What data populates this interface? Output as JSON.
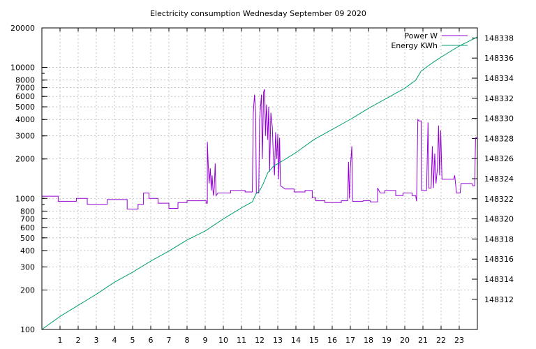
{
  "chart_data": {
    "type": "line",
    "title": "Electricity consumption Wednesday September 09 2020",
    "xlabel": "",
    "ylabel": "",
    "y2label": "",
    "xlim": [
      0,
      24
    ],
    "ylim": [
      100,
      20000
    ],
    "yscale": "log",
    "y2lim": [
      148309,
      148339
    ],
    "grid": true,
    "legend_position": "top-right",
    "x_ticks": [
      1,
      2,
      3,
      4,
      5,
      6,
      7,
      8,
      9,
      10,
      11,
      12,
      13,
      14,
      15,
      16,
      17,
      18,
      19,
      20,
      21,
      22,
      23
    ],
    "y_ticks": [
      {
        "v": 100,
        "label": "100"
      },
      {
        "v": 200,
        "label": "200"
      },
      {
        "v": 300,
        "label": "300"
      },
      {
        "v": 400,
        "label": "400"
      },
      {
        "v": 500,
        "label": "500"
      },
      {
        "v": 600,
        "label": "600"
      },
      {
        "v": 700,
        "label": "700"
      },
      {
        "v": 800,
        "label": "800"
      },
      {
        "v": 1000,
        "label": "1000"
      },
      {
        "v": 2000,
        "label": "2000"
      },
      {
        "v": 3000,
        "label": "3000"
      },
      {
        "v": 4000,
        "label": "4000"
      },
      {
        "v": 5000,
        "label": "5000"
      },
      {
        "v": 6000,
        "label": "6000"
      },
      {
        "v": 7000,
        "label": "7000"
      },
      {
        "v": 8000,
        "label": "8000"
      },
      {
        "v": 10000,
        "label": "10000"
      },
      {
        "v": 20000,
        "label": "20000"
      }
    ],
    "y2_ticks": [
      148312,
      148314,
      148316,
      148318,
      148320,
      148322,
      148324,
      148326,
      148328,
      148330,
      148332,
      148334,
      148336,
      148338
    ],
    "series": [
      {
        "name": "Power W",
        "axis": "y",
        "color": "#9400d3",
        "points": [
          [
            0,
            1040
          ],
          [
            0.9,
            1040
          ],
          [
            0.9,
            950
          ],
          [
            1.9,
            950
          ],
          [
            1.9,
            1000
          ],
          [
            2.5,
            1000
          ],
          [
            2.5,
            900
          ],
          [
            3.6,
            900
          ],
          [
            3.6,
            980
          ],
          [
            4.7,
            980
          ],
          [
            4.7,
            830
          ],
          [
            5.3,
            830
          ],
          [
            5.3,
            900
          ],
          [
            5.6,
            900
          ],
          [
            5.6,
            1100
          ],
          [
            5.9,
            1100
          ],
          [
            5.9,
            1000
          ],
          [
            6.4,
            1000
          ],
          [
            6.4,
            920
          ],
          [
            7.0,
            920
          ],
          [
            7.0,
            840
          ],
          [
            7.5,
            840
          ],
          [
            7.5,
            930
          ],
          [
            8.0,
            930
          ],
          [
            8.0,
            960
          ],
          [
            9.05,
            960
          ],
          [
            9.05,
            920
          ],
          [
            9.12,
            920
          ],
          [
            9.12,
            2700
          ],
          [
            9.16,
            1900
          ],
          [
            9.22,
            1300
          ],
          [
            9.28,
            1700
          ],
          [
            9.34,
            1150
          ],
          [
            9.38,
            1500
          ],
          [
            9.45,
            1050
          ],
          [
            9.5,
            1200
          ],
          [
            9.55,
            1850
          ],
          [
            9.6,
            1050
          ],
          [
            9.7,
            1100
          ],
          [
            10.4,
            1100
          ],
          [
            10.4,
            1150
          ],
          [
            11.2,
            1150
          ],
          [
            11.2,
            1120
          ],
          [
            11.6,
            1120
          ],
          [
            11.65,
            4500
          ],
          [
            11.72,
            6200
          ],
          [
            11.78,
            4500
          ],
          [
            11.82,
            1100
          ],
          [
            11.95,
            1100
          ],
          [
            12.0,
            4000
          ],
          [
            12.1,
            6200
          ],
          [
            12.15,
            2000
          ],
          [
            12.22,
            6500
          ],
          [
            12.28,
            6800
          ],
          [
            12.32,
            3000
          ],
          [
            12.38,
            5200
          ],
          [
            12.45,
            2800
          ],
          [
            12.5,
            5000
          ],
          [
            12.55,
            1600
          ],
          [
            12.62,
            4500
          ],
          [
            12.7,
            3500
          ],
          [
            12.75,
            2200
          ],
          [
            12.82,
            1500
          ],
          [
            12.88,
            3200
          ],
          [
            12.95,
            2000
          ],
          [
            13.0,
            3100
          ],
          [
            13.05,
            1400
          ],
          [
            13.1,
            2900
          ],
          [
            13.15,
            1250
          ],
          [
            13.4,
            1180
          ],
          [
            13.9,
            1180
          ],
          [
            13.9,
            1120
          ],
          [
            14.5,
            1120
          ],
          [
            14.5,
            1150
          ],
          [
            14.9,
            1150
          ],
          [
            14.9,
            1010
          ],
          [
            15.1,
            1010
          ],
          [
            15.1,
            960
          ],
          [
            15.6,
            960
          ],
          [
            15.6,
            930
          ],
          [
            16.5,
            930
          ],
          [
            16.5,
            960
          ],
          [
            16.85,
            960
          ],
          [
            16.9,
            1900
          ],
          [
            16.95,
            1000
          ],
          [
            17.0,
            1700
          ],
          [
            17.08,
            2500
          ],
          [
            17.12,
            950
          ],
          [
            17.7,
            950
          ],
          [
            17.7,
            960
          ],
          [
            18.1,
            960
          ],
          [
            18.1,
            940
          ],
          [
            18.5,
            940
          ],
          [
            18.5,
            1200
          ],
          [
            18.65,
            1100
          ],
          [
            18.9,
            1100
          ],
          [
            18.9,
            1150
          ],
          [
            19.5,
            1150
          ],
          [
            19.5,
            1050
          ],
          [
            19.9,
            1050
          ],
          [
            19.9,
            1100
          ],
          [
            20.4,
            1100
          ],
          [
            20.4,
            1050
          ],
          [
            20.6,
            1050
          ],
          [
            20.65,
            950
          ],
          [
            20.72,
            4000
          ],
          [
            20.78,
            3900
          ],
          [
            20.9,
            3900
          ],
          [
            20.92,
            1150
          ],
          [
            21.2,
            1150
          ],
          [
            21.28,
            3800
          ],
          [
            21.32,
            1200
          ],
          [
            21.45,
            1200
          ],
          [
            21.52,
            2500
          ],
          [
            21.58,
            1200
          ],
          [
            21.65,
            2200
          ],
          [
            21.72,
            1300
          ],
          [
            21.8,
            1700
          ],
          [
            21.86,
            3600
          ],
          [
            21.92,
            1500
          ],
          [
            21.98,
            3300
          ],
          [
            22.05,
            1400
          ],
          [
            22.7,
            1400
          ],
          [
            22.75,
            1500
          ],
          [
            22.85,
            1100
          ],
          [
            23.05,
            1100
          ],
          [
            23.1,
            1300
          ],
          [
            23.7,
            1300
          ],
          [
            23.75,
            1250
          ],
          [
            23.85,
            1250
          ],
          [
            23.9,
            2900
          ],
          [
            24,
            2900
          ]
        ]
      },
      {
        "name": "Energy KWh",
        "axis": "y2",
        "color": "#009e73",
        "points": [
          [
            0,
            148309.0
          ],
          [
            1,
            148310.3
          ],
          [
            2,
            148311.4
          ],
          [
            3,
            148312.5
          ],
          [
            4,
            148313.7
          ],
          [
            5,
            148314.7
          ],
          [
            6,
            148315.8
          ],
          [
            7,
            148316.8
          ],
          [
            8,
            148317.9
          ],
          [
            9,
            148318.8
          ],
          [
            10,
            148320.0
          ],
          [
            11,
            148321.1
          ],
          [
            11.6,
            148321.7
          ],
          [
            11.8,
            148322.5
          ],
          [
            12.0,
            148322.8
          ],
          [
            12.2,
            148323.5
          ],
          [
            12.45,
            148324.6
          ],
          [
            12.8,
            148325.3
          ],
          [
            13.2,
            148325.7
          ],
          [
            14,
            148326.6
          ],
          [
            15,
            148327.9
          ],
          [
            16,
            148328.9
          ],
          [
            17,
            148329.9
          ],
          [
            18,
            148331.0
          ],
          [
            19,
            148332.0
          ],
          [
            20,
            148333.0
          ],
          [
            20.6,
            148333.8
          ],
          [
            20.9,
            148334.7
          ],
          [
            21.5,
            148335.5
          ],
          [
            22,
            148336.1
          ],
          [
            23,
            148337.2
          ],
          [
            24,
            148338.1
          ]
        ]
      }
    ]
  }
}
